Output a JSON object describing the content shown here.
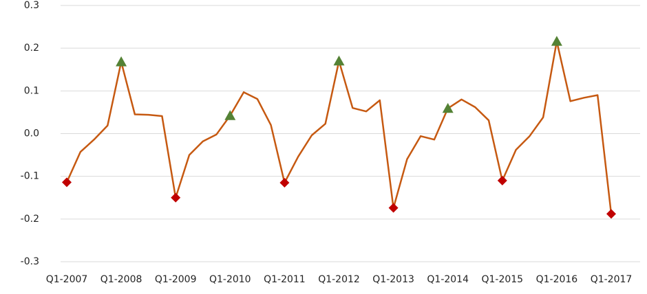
{
  "chart_data": {
    "type": "line",
    "categories": [
      "Q1-2007",
      null,
      null,
      null,
      "Q1-2008",
      null,
      null,
      null,
      "Q1-2009",
      null,
      null,
      null,
      "Q1-2010",
      null,
      null,
      null,
      "Q1-2011",
      null,
      null,
      null,
      "Q1-2012",
      null,
      null,
      null,
      "Q1-2013",
      null,
      null,
      null,
      "Q1-2014",
      null,
      null,
      null,
      "Q1-2015",
      null,
      null,
      null,
      "Q1-2016",
      null,
      null,
      null,
      "Q1-2017"
    ],
    "series": [
      {
        "color": "#c65911",
        "marker": "none",
        "values": [
          -0.114,
          -0.043,
          -0.014,
          0.019,
          0.168,
          0.045,
          0.044,
          0.041,
          -0.15,
          -0.05,
          -0.018,
          -0.002,
          0.042,
          0.097,
          0.081,
          0.02,
          -0.115,
          -0.054,
          -0.004,
          0.023,
          0.17,
          0.06,
          0.052,
          0.078,
          -0.174,
          -0.06,
          -0.006,
          -0.014,
          0.059,
          0.08,
          0.062,
          0.031,
          -0.11,
          -0.038,
          -0.006,
          0.038,
          0.216,
          0.076,
          0.084,
          0.09,
          -0.188
        ]
      },
      {
        "color": "#548235",
        "marker": "triangle",
        "values": [
          null,
          null,
          null,
          null,
          0.168,
          null,
          null,
          null,
          null,
          null,
          null,
          null,
          0.042,
          null,
          null,
          null,
          null,
          null,
          null,
          null,
          0.17,
          null,
          null,
          null,
          null,
          null,
          null,
          null,
          0.059,
          null,
          null,
          null,
          null,
          null,
          null,
          null,
          0.216,
          null,
          null,
          null,
          null
        ]
      },
      {
        "color": "#c00000",
        "marker": "diamond",
        "values": [
          -0.114,
          null,
          null,
          null,
          null,
          null,
          null,
          null,
          -0.15,
          null,
          null,
          null,
          null,
          null,
          null,
          null,
          -0.115,
          null,
          null,
          null,
          null,
          null,
          null,
          null,
          -0.174,
          null,
          null,
          null,
          null,
          null,
          null,
          null,
          -0.11,
          null,
          null,
          null,
          null,
          null,
          null,
          null,
          -0.188
        ]
      }
    ],
    "ylim": [
      -0.3,
      0.3
    ],
    "yticks": [
      0.3,
      0.2,
      0.1,
      {
        "value": 0,
        "label": "0.0"
      },
      -0.1,
      -0.2,
      -0.3
    ],
    "grid": true
  }
}
